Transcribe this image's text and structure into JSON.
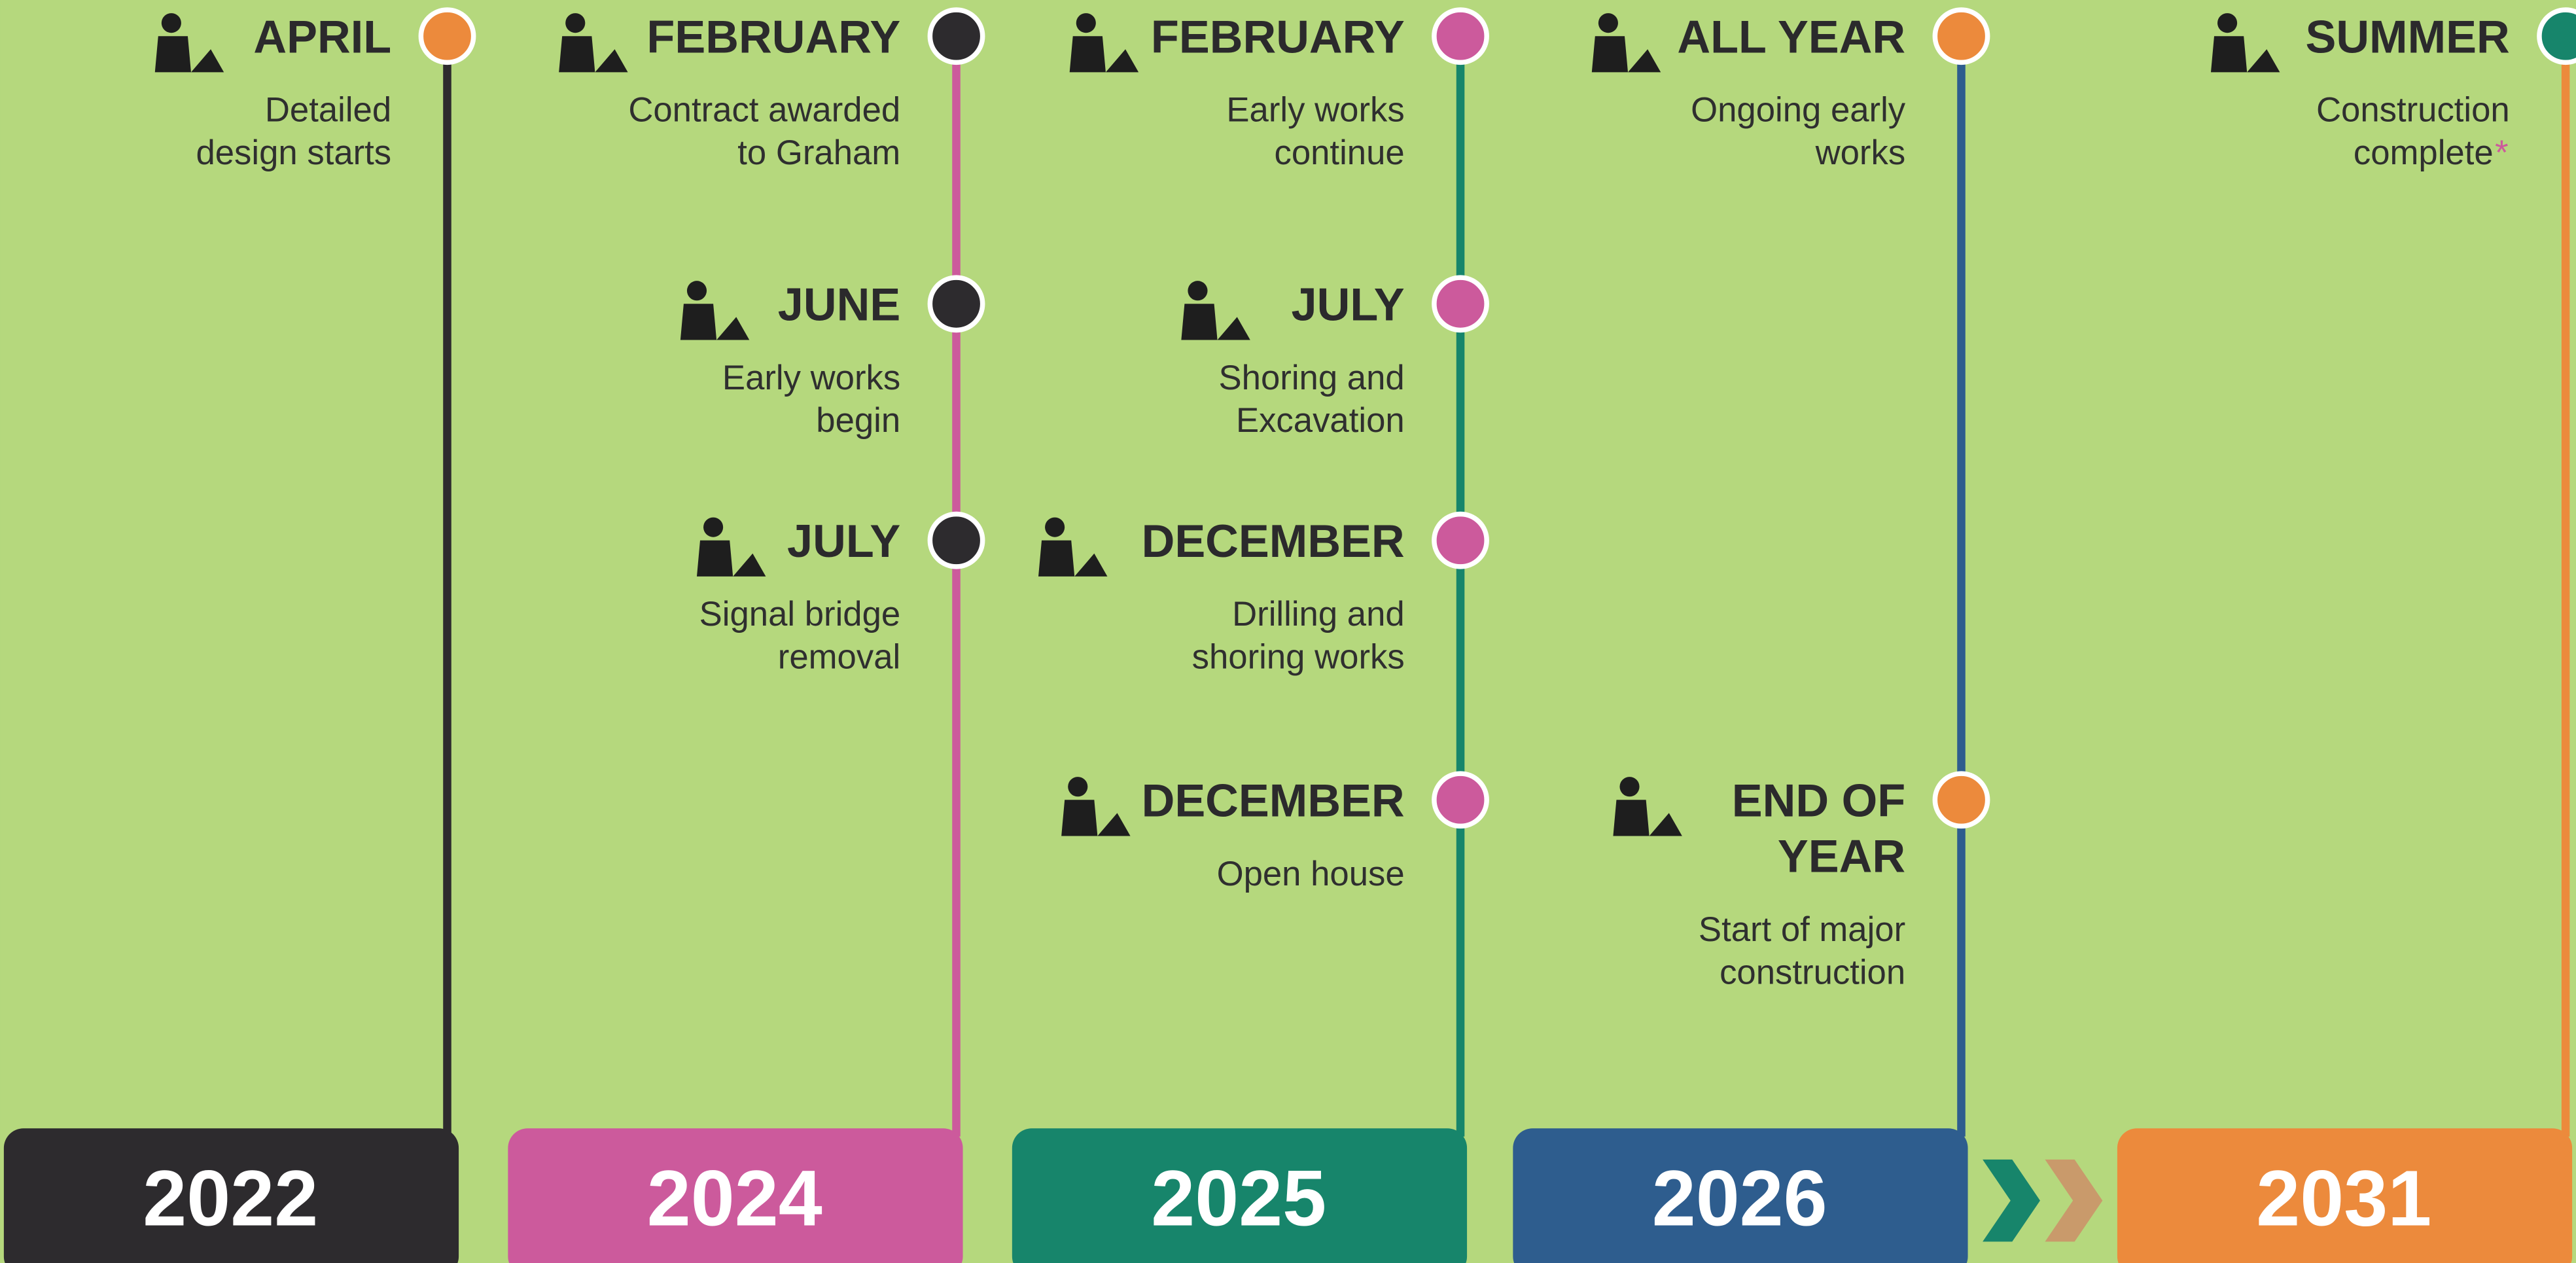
{
  "columns": [
    {
      "year": "2022",
      "events": [
        {
          "month": [
            "APRIL"
          ],
          "text": [
            "Detailed",
            "design starts"
          ]
        }
      ]
    },
    {
      "year": "2024",
      "events": [
        {
          "month": [
            "FEBRUARY"
          ],
          "text": [
            "Contract awarded",
            "to Graham"
          ]
        },
        {
          "month": [
            "JUNE"
          ],
          "text": [
            "Early works",
            "begin"
          ]
        },
        {
          "month": [
            "JULY"
          ],
          "text": [
            "Signal bridge",
            "removal"
          ]
        }
      ]
    },
    {
      "year": "2025",
      "events": [
        {
          "month": [
            "FEBRUARY"
          ],
          "text": [
            "Early works",
            "continue"
          ]
        },
        {
          "month": [
            "JULY"
          ],
          "text": [
            "Shoring and",
            "Excavation"
          ]
        },
        {
          "month": [
            "DECEMBER"
          ],
          "text": [
            "Drilling and",
            "shoring works"
          ]
        },
        {
          "month": [
            "DECEMBER"
          ],
          "text": [
            "Open house"
          ]
        }
      ]
    },
    {
      "year": "2026",
      "events": [
        {
          "month": [
            "ALL YEAR"
          ],
          "text": [
            "Ongoing early",
            "works"
          ]
        },
        {
          "month": [
            "END OF",
            "YEAR"
          ],
          "text": [
            "Start of major",
            "construction"
          ]
        }
      ]
    },
    {
      "year": "2031",
      "events": [
        {
          "month": [
            "SUMMER"
          ],
          "text": [
            "Construction",
            "complete"
          ],
          "note": "*"
        }
      ]
    }
  ]
}
